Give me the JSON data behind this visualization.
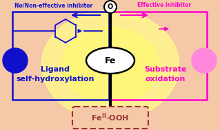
{
  "bg_color": "#f5c8a8",
  "glow_color": "#ffff88",
  "blue_color": "#1010cc",
  "pink_color": "#ff00cc",
  "dark_red": "#993333",
  "black": "#000000",
  "white": "#ffffff",
  "title_no": "No/Non-effective inhibitor",
  "title_eff": "Effective inhibitor",
  "label_left": "Ligand\nself-hydroxylation",
  "label_right": "Substrate\noxidation",
  "label_fe": "Fe",
  "fig_width": 3.19,
  "fig_height": 1.89,
  "dpi": 100
}
